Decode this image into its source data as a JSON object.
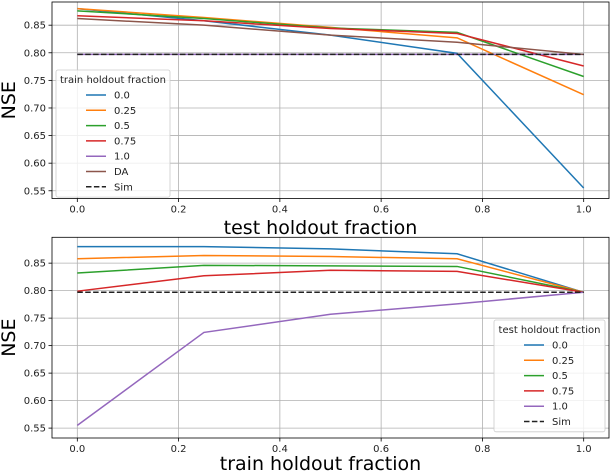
{
  "chart_data": [
    {
      "type": "line",
      "xlabel": "test holdout fraction",
      "ylabel": "NSE",
      "xlim": [
        -0.05,
        1.05
      ],
      "ylim": [
        0.536,
        0.892
      ],
      "xticks": [
        "0.0",
        "0.2",
        "0.4",
        "0.6",
        "0.8",
        "1.0"
      ],
      "yticks": [
        "0.55",
        "0.60",
        "0.65",
        "0.70",
        "0.75",
        "0.80",
        "0.85"
      ],
      "grid": true,
      "legend": {
        "title": "train holdout fraction",
        "placement": "lower-left"
      },
      "x": [
        0,
        0.25,
        0.5,
        0.75,
        1.0
      ],
      "series": [
        {
          "name": "0.0",
          "color": "#1f77b4",
          "dash": false,
          "values": [
            0.88,
            0.858,
            0.832,
            0.799,
            0.555
          ]
        },
        {
          "name": "0.25",
          "color": "#ff7f0e",
          "dash": false,
          "values": [
            0.88,
            0.864,
            0.846,
            0.827,
            0.724
          ]
        },
        {
          "name": "0.5",
          "color": "#2ca02c",
          "dash": false,
          "values": [
            0.876,
            0.862,
            0.845,
            0.837,
            0.757
          ]
        },
        {
          "name": "0.75",
          "color": "#d62728",
          "dash": false,
          "values": [
            0.867,
            0.858,
            0.844,
            0.835,
            0.776
          ]
        },
        {
          "name": "1.0",
          "color": "#9467bd",
          "dash": false,
          "values": [
            0.797,
            0.797,
            0.797,
            0.797,
            0.797
          ]
        },
        {
          "name": "DA",
          "color": "#8c564b",
          "dash": false,
          "values": [
            0.862,
            0.85,
            0.832,
            0.819,
            0.797
          ]
        },
        {
          "name": "Sim",
          "color": "#222222",
          "dash": true,
          "values": [
            0.797,
            0.797,
            0.797,
            0.797,
            0.797
          ]
        }
      ]
    },
    {
      "type": "line",
      "xlabel": "train holdout fraction",
      "ylabel": "NSE",
      "xlim": [
        -0.05,
        1.05
      ],
      "ylim": [
        0.532,
        0.897
      ],
      "xticks": [
        "0.0",
        "0.2",
        "0.4",
        "0.6",
        "0.8",
        "1.0"
      ],
      "yticks": [
        "0.55",
        "0.60",
        "0.65",
        "0.70",
        "0.75",
        "0.80",
        "0.85"
      ],
      "grid": true,
      "legend": {
        "title": "test holdout fraction",
        "placement": "lower-right"
      },
      "x": [
        0,
        0.25,
        0.5,
        0.75,
        1.0
      ],
      "series": [
        {
          "name": "0.0",
          "color": "#1f77b4",
          "dash": false,
          "values": [
            0.88,
            0.88,
            0.876,
            0.867,
            0.797
          ]
        },
        {
          "name": "0.25",
          "color": "#ff7f0e",
          "dash": false,
          "values": [
            0.858,
            0.864,
            0.862,
            0.858,
            0.797
          ]
        },
        {
          "name": "0.5",
          "color": "#2ca02c",
          "dash": false,
          "values": [
            0.832,
            0.846,
            0.845,
            0.844,
            0.797
          ]
        },
        {
          "name": "0.75",
          "color": "#d62728",
          "dash": false,
          "values": [
            0.799,
            0.827,
            0.837,
            0.835,
            0.797
          ]
        },
        {
          "name": "1.0",
          "color": "#9467bd",
          "dash": false,
          "values": [
            0.555,
            0.724,
            0.757,
            0.776,
            0.797
          ]
        },
        {
          "name": "Sim",
          "color": "#222222",
          "dash": true,
          "values": [
            0.797,
            0.797,
            0.797,
            0.797,
            0.797
          ]
        }
      ]
    }
  ]
}
